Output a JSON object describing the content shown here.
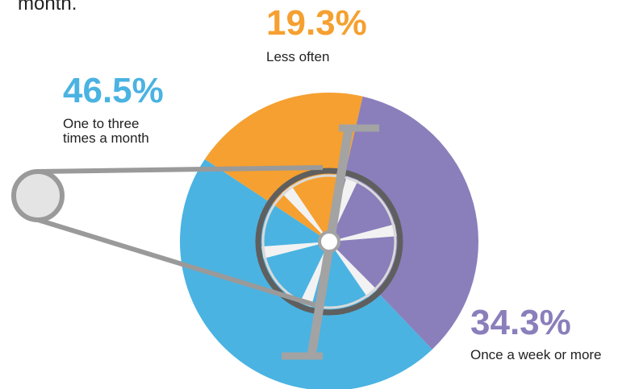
{
  "chart_data": {
    "type": "pie",
    "title": "month.",
    "categories": [
      "Once a week or more",
      "One to three times a month",
      "Less often"
    ],
    "values": [
      34.3,
      46.5,
      19.3
    ],
    "value_labels": [
      "34.3%",
      "46.5%",
      "19.3%"
    ],
    "colors": [
      "#8a7fbb",
      "#4ab3e2",
      "#f5a030"
    ]
  }
}
